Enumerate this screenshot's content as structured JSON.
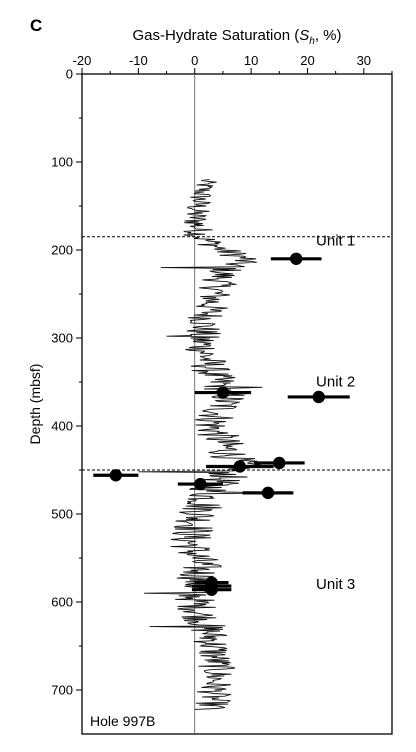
{
  "panel_label": "C",
  "chart_data": {
    "type": "line",
    "title_prefix": "Gas-Hydrate Saturation (",
    "title_symbol": "S",
    "title_subscript": "h",
    "title_suffix": ", %)",
    "xlabel": "Gas-Hydrate Saturation (Sh, %)",
    "ylabel": "Depth (mbsf)",
    "xlim": [
      -20,
      35
    ],
    "ylim": [
      750,
      0
    ],
    "y_inverted": true,
    "x_axis_position": "top",
    "x_ticks": [
      -20,
      -10,
      0,
      10,
      20,
      30
    ],
    "x_tick_labels": [
      "-20",
      "-10",
      "0",
      "10",
      "20",
      "30"
    ],
    "y_ticks": [
      0,
      100,
      200,
      300,
      400,
      500,
      600,
      700
    ],
    "y_tick_labels": [
      "0",
      "100",
      "200",
      "300",
      "400",
      "500",
      "600",
      "700"
    ],
    "zero_line_x": 0,
    "unit_boundaries_depth": [
      185,
      450
    ],
    "unit_labels": [
      {
        "text": "Unit 1",
        "x": 25,
        "depth": 195
      },
      {
        "text": "Unit 2",
        "x": 25,
        "depth": 355
      },
      {
        "text": "Unit 3",
        "x": 25,
        "depth": 585
      }
    ],
    "hole_label": "Hole 997B",
    "log_curve": {
      "depth_start": 120,
      "depth_end": 722,
      "depth_step": 2,
      "baseline": [
        [
          120,
          2
        ],
        [
          160,
          0
        ],
        [
          185,
          1
        ],
        [
          200,
          5
        ],
        [
          210,
          9
        ],
        [
          225,
          5
        ],
        [
          260,
          3
        ],
        [
          300,
          1
        ],
        [
          340,
          3
        ],
        [
          365,
          6
        ],
        [
          400,
          3
        ],
        [
          430,
          6
        ],
        [
          445,
          8
        ],
        [
          470,
          3
        ],
        [
          500,
          1
        ],
        [
          530,
          -1
        ],
        [
          560,
          1
        ],
        [
          600,
          0
        ],
        [
          640,
          3
        ],
        [
          680,
          4
        ],
        [
          722,
          3
        ]
      ],
      "amplitude": [
        [
          120,
          2
        ],
        [
          190,
          3
        ],
        [
          300,
          3.5
        ],
        [
          460,
          4
        ],
        [
          560,
          4
        ],
        [
          722,
          3
        ]
      ],
      "spikes": [
        {
          "depth": 220,
          "value": -6
        },
        {
          "depth": 298,
          "value": -5
        },
        {
          "depth": 356,
          "value": 12
        },
        {
          "depth": 452,
          "value": -10
        },
        {
          "depth": 476,
          "value": 14
        },
        {
          "depth": 590,
          "value": -9
        },
        {
          "depth": 628,
          "value": -8
        },
        {
          "depth": 722,
          "value": 0
        }
      ]
    },
    "points": [
      {
        "depth": 210,
        "value": 18,
        "err": 4.5
      },
      {
        "depth": 362,
        "value": 5,
        "err": 5
      },
      {
        "depth": 367,
        "value": 22,
        "err": 5.5
      },
      {
        "depth": 442,
        "value": 15,
        "err": 4.5
      },
      {
        "depth": 446,
        "value": 8,
        "err": 6
      },
      {
        "depth": 456,
        "value": -14,
        "err": 4
      },
      {
        "depth": 466,
        "value": 1,
        "err": 4
      },
      {
        "depth": 476,
        "value": 13,
        "err": 4.5
      },
      {
        "depth": 578,
        "value": 3,
        "err": 3
      },
      {
        "depth": 582,
        "value": 3,
        "err": 3.5
      },
      {
        "depth": 586,
        "value": 3,
        "err": 3.5
      }
    ]
  }
}
